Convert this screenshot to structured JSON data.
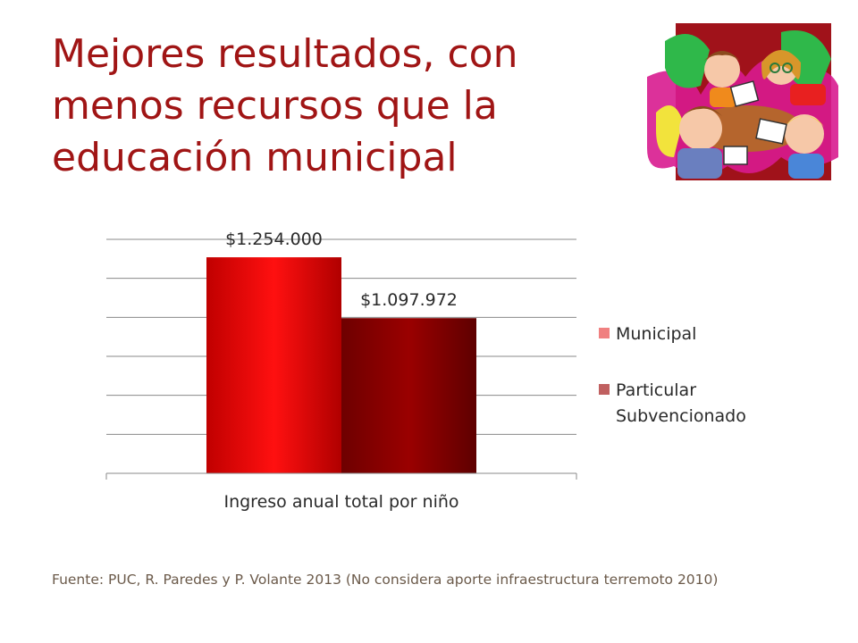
{
  "slide": {
    "title_lines": [
      "Mejores resultados, con",
      "menos recursos que la",
      "educación municipal"
    ],
    "source": "Fuente: PUC, R. Paredes y P. Volante 2013 (No considera aporte infraestructura terremoto 2010)"
  },
  "colors": {
    "title": "#a01515",
    "municipal": "#e00000",
    "particular": "#8a0000",
    "gridline": "#888888",
    "text": "#2a2a2a"
  },
  "chart_data": {
    "type": "bar",
    "categories": [
      "Ingreso anual total por niño"
    ],
    "series": [
      {
        "name": "Municipal",
        "values": [
          1254000
        ],
        "label": "$1.254.000",
        "color": "#e00000"
      },
      {
        "name": "Particular Subvencionado",
        "values": [
          1097972
        ],
        "label": "$1.097.972",
        "color": "#8a0000"
      }
    ],
    "legend": {
      "position": "right",
      "entries": [
        {
          "lines": [
            "Municipal"
          ],
          "color": "#f08080"
        },
        {
          "lines": [
            "Particular",
            "Subvencionado"
          ],
          "color": "#c06060"
        }
      ]
    },
    "grid": true,
    "ylim": [
      700000,
      1300000
    ],
    "ytick_step": 100000
  }
}
